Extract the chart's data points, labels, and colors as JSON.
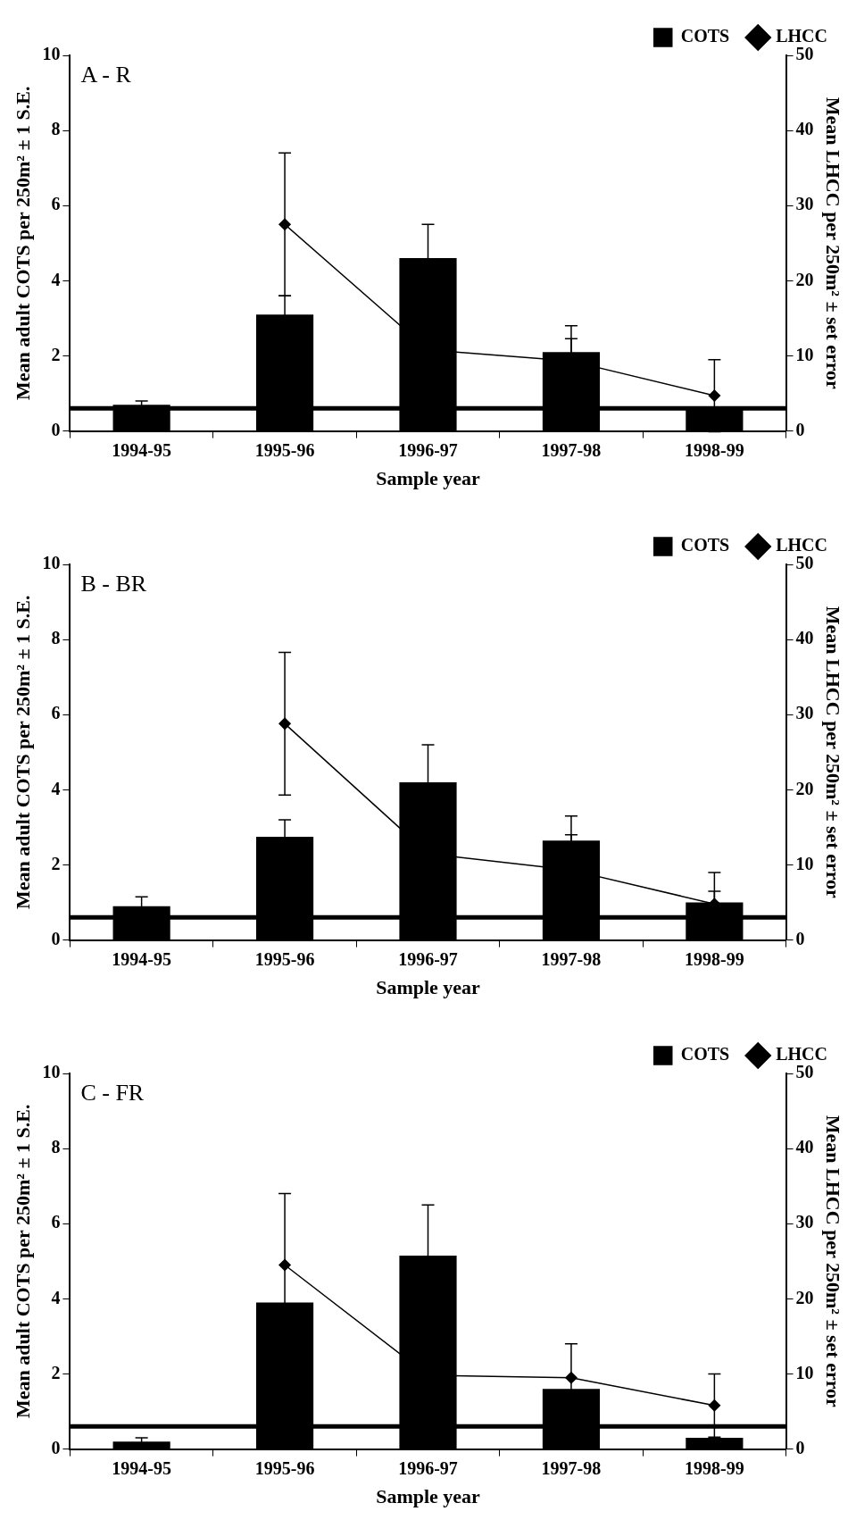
{
  "chart_data": [
    {
      "type": "bar",
      "title": "A - R",
      "xlabel": "Sample year",
      "ylabel": "Mean adult COTS per 250m² ± 1 S.E.",
      "y2label": "Mean LHCC per 250m² ± set error",
      "categories": [
        "1994-95",
        "1995-96",
        "1996-97",
        "1997-98",
        "1998-99"
      ],
      "series": [
        {
          "name": "COTS",
          "color": "#000000",
          "values": [
            0.7,
            3.1,
            4.6,
            2.1,
            0.6
          ],
          "errors": [
            0.1,
            0.5,
            0.9,
            0.7,
            null
          ]
        },
        {
          "name": "LHCC",
          "type": "line",
          "axis": "y2",
          "color": "#000000",
          "values": [
            null,
            27.5,
            10.8,
            9.3,
            4.7
          ],
          "errors": [
            null,
            9.5,
            null,
            3,
            4.8
          ]
        }
      ],
      "ylim": [
        0,
        10
      ],
      "yticks": [
        0,
        2,
        4,
        6,
        8,
        10
      ],
      "y2lim": [
        0,
        50
      ],
      "y2ticks": [
        0,
        10,
        20,
        30,
        40,
        50
      ],
      "ref_lines": [
        {
          "axis": "y",
          "value": 0.6,
          "color": "#000000"
        }
      ],
      "legend": "top right",
      "marker": "diamond",
      "grid": false
    },
    {
      "type": "bar",
      "title": "B - BR",
      "xlabel": "Sample year",
      "ylabel": "Mean adult COTS per 250m² ± 1 S.E.",
      "y2label": "Mean LHCC per 250m² ± set error",
      "categories": [
        "1994-95",
        "1995-96",
        "1996-97",
        "1997-98",
        "1998-99"
      ],
      "series": [
        {
          "name": "COTS",
          "color": "#000000",
          "values": [
            0.9,
            2.75,
            4.2,
            2.65,
            1.0
          ],
          "errors": [
            0.25,
            0.45,
            1.0,
            0.65,
            0.3
          ]
        },
        {
          "name": "LHCC",
          "type": "line",
          "axis": "y2",
          "color": "#000000",
          "values": [
            null,
            28.8,
            11.5,
            9.3,
            4.8
          ],
          "errors": [
            null,
            9.5,
            null,
            4.7,
            4.2
          ]
        }
      ],
      "ylim": [
        0,
        10
      ],
      "yticks": [
        0,
        2,
        4,
        6,
        8,
        10
      ],
      "y2lim": [
        0,
        50
      ],
      "y2ticks": [
        0,
        10,
        20,
        30,
        40,
        50
      ],
      "ref_lines": [
        {
          "axis": "y",
          "value": 0.6,
          "color": "#000000"
        }
      ],
      "legend": "top right",
      "marker": "diamond",
      "grid": false
    },
    {
      "type": "bar",
      "title": "C - FR",
      "xlabel": "Sample year",
      "ylabel": "Mean adult COTS per 250m² ± 1 S.E.",
      "y2label": "Mean LHCC per 250m² ± set error",
      "categories": [
        "1994-95",
        "1995-96",
        "1996-97",
        "1997-98",
        "1998-99"
      ],
      "series": [
        {
          "name": "COTS",
          "color": "#000000",
          "values": [
            0.2,
            3.9,
            5.15,
            1.6,
            0.3
          ],
          "errors": [
            0.1,
            null,
            1.35,
            null,
            null
          ]
        },
        {
          "name": "LHCC",
          "type": "line",
          "axis": "y2",
          "color": "#000000",
          "values": [
            null,
            24.5,
            9.8,
            9.5,
            5.8
          ],
          "errors": [
            null,
            9.5,
            null,
            4.5,
            4.2
          ]
        }
      ],
      "ylim": [
        0,
        10
      ],
      "yticks": [
        0,
        2,
        4,
        6,
        8,
        10
      ],
      "y2lim": [
        0,
        50
      ],
      "y2ticks": [
        0,
        10,
        20,
        30,
        40,
        50
      ],
      "ref_lines": [
        {
          "axis": "y",
          "value": 0.6,
          "color": "#000000"
        }
      ],
      "legend": "top right",
      "marker": "diamond",
      "grid": false
    }
  ]
}
